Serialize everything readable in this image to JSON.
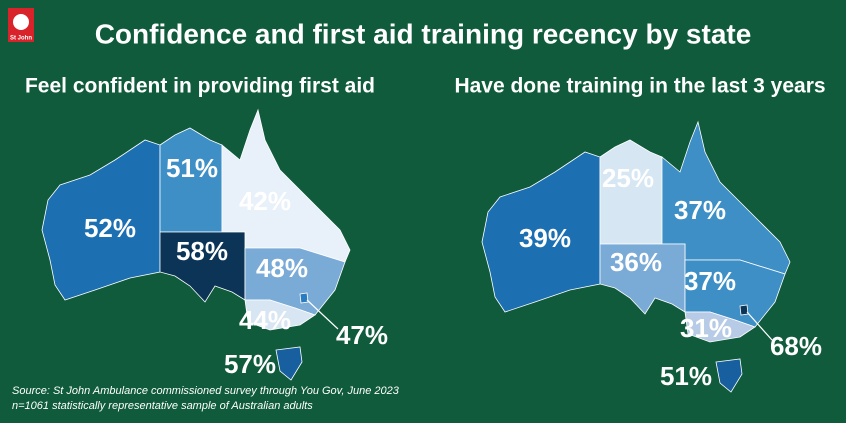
{
  "logo": "St John",
  "title": "Confidence and first aid training recency by state",
  "maps": [
    {
      "title": "Feel confident in providing first aid",
      "values": [
        52,
        51,
        42,
        58,
        48,
        44,
        47,
        57
      ],
      "value_labels": [
        "52%",
        "51%",
        "42%",
        "58%",
        "48%",
        "44%",
        "47%",
        "57%"
      ],
      "colors": [
        "#1c6fb1",
        "#3d8fc6",
        "#e8f1f9",
        "#0b3457",
        "#7aaad6",
        "#d8e5f2",
        "#2b7cbf",
        "#175f9e"
      ]
    },
    {
      "title": "Have done training in the last 3 years",
      "values": [
        39,
        25,
        37,
        36,
        37,
        31,
        68,
        51
      ],
      "value_labels": [
        "39%",
        "25%",
        "37%",
        "36%",
        "37%",
        "31%",
        "68%",
        "51%"
      ],
      "colors": [
        "#1c6fb1",
        "#d6e6f3",
        "#3d8fc6",
        "#7aaad6",
        "#3d8fc6",
        "#b8cbe6",
        "#0b3457",
        "#175f9e"
      ]
    }
  ],
  "source": [
    "Source: St John Ambulance commissioned survey through You Gov, June 2023",
    "n=1061 statistically representative sample of Australian adults"
  ]
}
